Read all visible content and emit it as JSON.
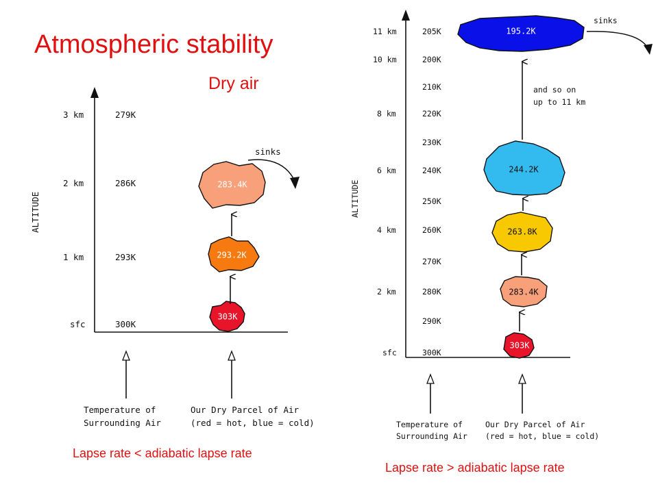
{
  "title": "Atmospheric stability",
  "subtitle": "Dry air",
  "left": {
    "axis_label": "ALTITUDE",
    "rows": [
      {
        "alt": "3 km",
        "temp": "279K"
      },
      {
        "alt": "2 km",
        "temp": "286K"
      },
      {
        "alt": "1 km",
        "temp": "293K"
      },
      {
        "alt": "sfc",
        "temp": "300K"
      }
    ],
    "parcels": [
      {
        "label": "303K",
        "color": "#e8142a"
      },
      {
        "label": "293.2K",
        "color": "#f77a10"
      },
      {
        "label": "283.4K",
        "color": "#f7a07a"
      }
    ],
    "sinks_label": "sinks",
    "bottom_labels": {
      "surrounding_line1": "Temperature of",
      "surrounding_line2": "Surrounding Air",
      "parcel_line1": "Our Dry Parcel of Air",
      "parcel_line2": "(red = hot, blue = cold)"
    },
    "caption": "Lapse rate < adiabatic lapse rate"
  },
  "right": {
    "axis_label": "ALTITUDE",
    "alt_labels": [
      "11 km",
      "10 km",
      "8 km",
      "6 km",
      "4 km",
      "2 km",
      "sfc"
    ],
    "temps": [
      "205K",
      "200K",
      "210K",
      "220K",
      "230K",
      "240K",
      "250K",
      "260K",
      "270K",
      "280K",
      "290K",
      "300K"
    ],
    "parcels": [
      {
        "label": "303K",
        "color": "#e8142a"
      },
      {
        "label": "283.4K",
        "color": "#f7a07a"
      },
      {
        "label": "263.8K",
        "color": "#f8c800"
      },
      {
        "label": "244.2K",
        "color": "#33bbf0"
      },
      {
        "label": "195.2K",
        "color": "#0a10e8"
      }
    ],
    "note_line1": "and so on",
    "note_line2": "up to 11 km",
    "sinks_label": "sinks",
    "bottom_labels": {
      "surrounding_line1": "Temperature of",
      "surrounding_line2": "Surrounding Air",
      "parcel_line1": "Our Dry Parcel of Air",
      "parcel_line2": "(red = hot, blue = cold)"
    },
    "caption": "Lapse rate > adiabatic lapse rate"
  }
}
